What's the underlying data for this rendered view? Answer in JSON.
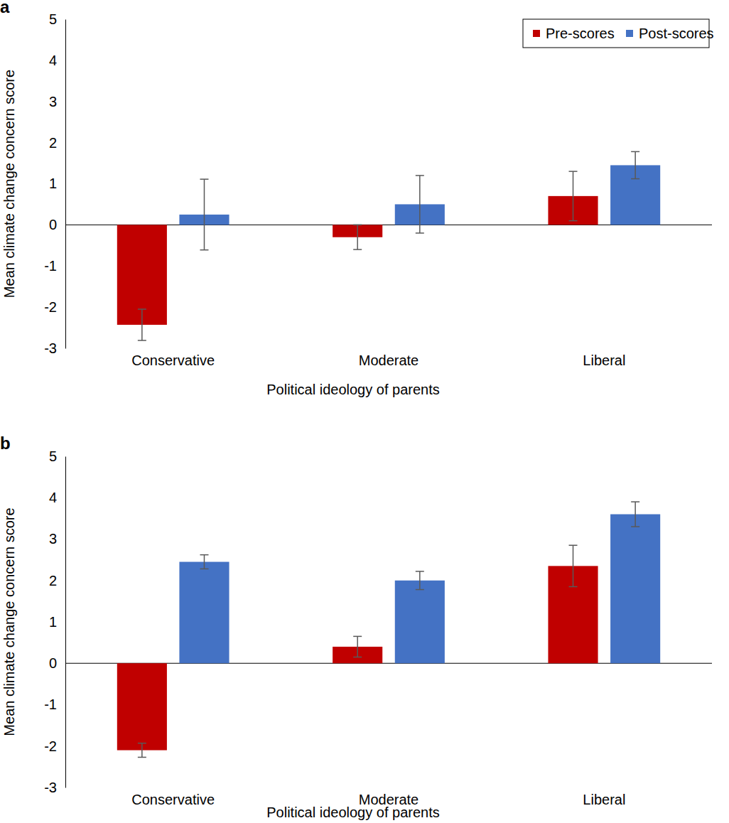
{
  "chart_data": [
    {
      "type": "bar",
      "title": "a",
      "x_label": "Political ideology of parents",
      "y_label": "Mean climate change concern score",
      "categories": [
        "Conservative",
        "Moderate",
        "Liberal"
      ],
      "series": [
        {
          "name": "Pre-scores",
          "color": "#c00000",
          "values": [
            -2.43,
            -0.3,
            0.7
          ],
          "errors": [
            0.38,
            0.3,
            0.6
          ]
        },
        {
          "name": "Post-scores",
          "color": "#4472c4",
          "values": [
            0.25,
            0.5,
            1.45
          ],
          "errors": [
            0.86,
            0.7,
            0.33
          ]
        }
      ],
      "ylim": [
        -3,
        5
      ],
      "yticks": [
        -3,
        -2,
        -1,
        0,
        1,
        2,
        3,
        4,
        5
      ],
      "grid": false,
      "legend": "top-right"
    },
    {
      "type": "bar",
      "title": "b",
      "x_label": "Political ideology of parents",
      "y_label": "Mean climate change concern score",
      "categories": [
        "Conservative",
        "Moderate",
        "Liberal"
      ],
      "series": [
        {
          "color": "#c00000",
          "values": [
            -2.1,
            0.4,
            2.35
          ],
          "errors": [
            0.17,
            0.25,
            0.5
          ]
        },
        {
          "color": "#4472c4",
          "values": [
            2.45,
            2.0,
            3.6
          ],
          "errors": [
            0.17,
            0.22,
            0.3
          ]
        }
      ],
      "ylim": [
        -3,
        5
      ],
      "yticks": [
        -3,
        -2,
        -1,
        0,
        1,
        2,
        3,
        4,
        5
      ],
      "grid": false
    }
  ]
}
